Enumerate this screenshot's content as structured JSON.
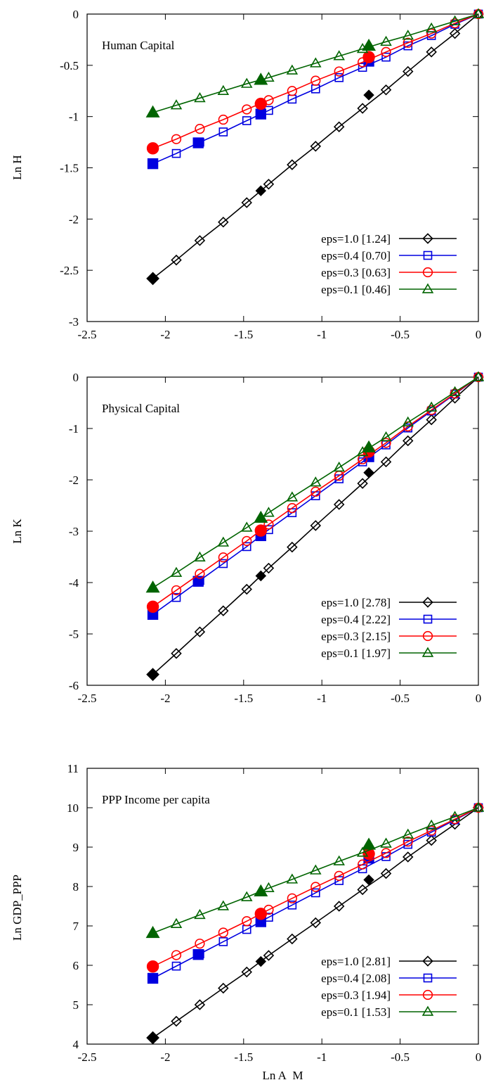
{
  "chart_data": [
    {
      "type": "line",
      "title": "Human Capital",
      "ylabel": "Ln H",
      "xlabel": "",
      "xlim": [
        -2.5,
        0
      ],
      "ylim": [
        -3,
        0
      ],
      "xticks": [
        "-2.5",
        "-2",
        "-1.5",
        "-1",
        "-0.5",
        "0"
      ],
      "yticks": [
        "0",
        "-0.5",
        "-1",
        "-1.5",
        "-2",
        "-2.5",
        "-3"
      ],
      "grid": false,
      "legend_position": "bottom-right",
      "series": [
        {
          "name": "eps=1.0 [1.24]",
          "color": "#000000",
          "marker": "diamond",
          "x": [
            -2.08,
            -1.93,
            -1.78,
            -1.63,
            -1.48,
            -1.34,
            -1.19,
            -1.04,
            -0.89,
            -0.74,
            -0.59,
            -0.45,
            -0.3,
            -0.15,
            0
          ],
          "y": [
            -2.58,
            -2.4,
            -2.21,
            -2.03,
            -1.84,
            -1.66,
            -1.47,
            -1.29,
            -1.1,
            -0.92,
            -0.74,
            -0.56,
            -0.37,
            -0.19,
            0
          ],
          "highlight": {
            "x": -0.7,
            "y": -0.79
          }
        },
        {
          "name": "eps=0.4 [0.70]",
          "color": "#0000e0",
          "marker": "square",
          "x": [
            -2.08,
            -1.93,
            -1.78,
            -1.63,
            -1.48,
            -1.34,
            -1.19,
            -1.04,
            -0.89,
            -0.74,
            -0.59,
            -0.45,
            -0.3,
            -0.15,
            0
          ],
          "y": [
            -1.46,
            -1.36,
            -1.25,
            -1.15,
            -1.04,
            -0.94,
            -0.83,
            -0.73,
            -0.62,
            -0.52,
            -0.42,
            -0.31,
            -0.21,
            -0.1,
            0
          ],
          "highlight": {
            "x": -0.7,
            "y": -0.46
          }
        },
        {
          "name": "eps=0.3 [0.63]",
          "color": "#ff0000",
          "marker": "circle",
          "x": [
            -2.08,
            -1.93,
            -1.78,
            -1.63,
            -1.48,
            -1.34,
            -1.19,
            -1.04,
            -0.89,
            -0.74,
            -0.59,
            -0.45,
            -0.3,
            -0.15,
            0
          ],
          "y": [
            -1.31,
            -1.22,
            -1.12,
            -1.03,
            -0.93,
            -0.84,
            -0.75,
            -0.65,
            -0.56,
            -0.47,
            -0.37,
            -0.28,
            -0.19,
            -0.09,
            0
          ],
          "highlight": {
            "x": -0.7,
            "y": -0.42
          }
        },
        {
          "name": "eps=0.1 [0.46]",
          "color": "#006400",
          "marker": "triangle",
          "x": [
            -2.08,
            -1.93,
            -1.78,
            -1.63,
            -1.48,
            -1.34,
            -1.19,
            -1.04,
            -0.89,
            -0.74,
            -0.59,
            -0.45,
            -0.3,
            -0.15,
            0
          ],
          "y": [
            -0.96,
            -0.89,
            -0.82,
            -0.75,
            -0.68,
            -0.62,
            -0.55,
            -0.48,
            -0.41,
            -0.34,
            -0.27,
            -0.21,
            -0.14,
            -0.07,
            0
          ],
          "highlight": {
            "x": -0.7,
            "y": -0.31
          }
        }
      ]
    },
    {
      "type": "line",
      "title": "Physical Capital",
      "ylabel": "Ln K",
      "xlabel": "",
      "xlim": [
        -2.5,
        0
      ],
      "ylim": [
        -6,
        0
      ],
      "xticks": [
        "-2.5",
        "-2",
        "-1.5",
        "-1",
        "-0.5",
        "0"
      ],
      "yticks": [
        "0",
        "-1",
        "-2",
        "-3",
        "-4",
        "-5",
        "-6"
      ],
      "grid": false,
      "legend_position": "bottom-right",
      "series": [
        {
          "name": "eps=1.0 [2.78]",
          "color": "#000000",
          "marker": "diamond",
          "x": [
            -2.08,
            -1.93,
            -1.78,
            -1.63,
            -1.48,
            -1.34,
            -1.19,
            -1.04,
            -0.89,
            -0.74,
            -0.59,
            -0.45,
            -0.3,
            -0.15,
            0
          ],
          "y": [
            -5.79,
            -5.38,
            -4.96,
            -4.55,
            -4.13,
            -3.72,
            -3.31,
            -2.89,
            -2.48,
            -2.07,
            -1.65,
            -1.24,
            -0.83,
            -0.41,
            0
          ],
          "highlight": {
            "x": -0.7,
            "y": -1.86
          }
        },
        {
          "name": "eps=0.4 [2.22]",
          "color": "#0000e0",
          "marker": "square",
          "x": [
            -2.08,
            -1.93,
            -1.78,
            -1.63,
            -1.48,
            -1.34,
            -1.19,
            -1.04,
            -0.89,
            -0.74,
            -0.59,
            -0.45,
            -0.3,
            -0.15,
            0
          ],
          "y": [
            -4.62,
            -4.29,
            -3.96,
            -3.63,
            -3.3,
            -2.97,
            -2.64,
            -2.31,
            -1.98,
            -1.65,
            -1.32,
            -0.99,
            -0.66,
            -0.33,
            0
          ],
          "highlight": {
            "x": -0.7,
            "y": -1.55
          }
        },
        {
          "name": "eps=0.3 [2.15]",
          "color": "#ff0000",
          "marker": "circle",
          "x": [
            -2.08,
            -1.93,
            -1.78,
            -1.63,
            -1.48,
            -1.34,
            -1.19,
            -1.04,
            -0.89,
            -0.74,
            -0.59,
            -0.45,
            -0.3,
            -0.15,
            0
          ],
          "y": [
            -4.47,
            -4.15,
            -3.83,
            -3.51,
            -3.19,
            -2.87,
            -2.55,
            -2.23,
            -1.92,
            -1.6,
            -1.28,
            -0.96,
            -0.64,
            -0.32,
            0
          ],
          "highlight": {
            "x": -0.7,
            "y": -1.45
          }
        },
        {
          "name": "eps=0.1 [1.97]",
          "color": "#006400",
          "marker": "triangle",
          "x": [
            -2.08,
            -1.93,
            -1.78,
            -1.63,
            -1.48,
            -1.34,
            -1.19,
            -1.04,
            -0.89,
            -0.74,
            -0.59,
            -0.45,
            -0.3,
            -0.15,
            0
          ],
          "y": [
            -4.1,
            -3.81,
            -3.51,
            -3.22,
            -2.93,
            -2.64,
            -2.34,
            -2.05,
            -1.76,
            -1.46,
            -1.17,
            -0.88,
            -0.59,
            -0.29,
            0
          ],
          "highlight": {
            "x": -0.7,
            "y": -1.37
          }
        }
      ]
    },
    {
      "type": "line",
      "title": "PPP Income per capita",
      "ylabel": "Ln GDP_PPP",
      "xlabel": "Ln A_M",
      "xlim": [
        -2.5,
        0
      ],
      "ylim": [
        4,
        11
      ],
      "xticks": [
        "-2.5",
        "-2",
        "-1.5",
        "-1",
        "-0.5",
        "0"
      ],
      "yticks": [
        "11",
        "10",
        "9",
        "8",
        "7",
        "6",
        "5",
        "4"
      ],
      "grid": false,
      "legend_position": "bottom-right",
      "series": [
        {
          "name": "eps=1.0 [2.81]",
          "color": "#000000",
          "marker": "diamond",
          "x": [
            -2.08,
            -1.93,
            -1.78,
            -1.63,
            -1.48,
            -1.34,
            -1.19,
            -1.04,
            -0.89,
            -0.74,
            -0.59,
            -0.45,
            -0.3,
            -0.15,
            0
          ],
          "y": [
            4.16,
            4.58,
            5.0,
            5.42,
            5.83,
            6.25,
            6.67,
            7.08,
            7.5,
            7.92,
            8.33,
            8.75,
            9.17,
            9.58,
            10.0
          ],
          "highlight": {
            "x": -0.7,
            "y": 8.17
          }
        },
        {
          "name": "eps=0.4 [2.08]",
          "color": "#0000e0",
          "marker": "square",
          "x": [
            -2.08,
            -1.93,
            -1.78,
            -1.63,
            -1.48,
            -1.34,
            -1.19,
            -1.04,
            -0.89,
            -0.74,
            -0.59,
            -0.45,
            -0.3,
            -0.15,
            0
          ],
          "y": [
            5.67,
            5.98,
            6.29,
            6.6,
            6.91,
            7.22,
            7.53,
            7.84,
            8.15,
            8.45,
            8.76,
            9.07,
            9.38,
            9.69,
            10.0
          ],
          "highlight": {
            "x": -0.7,
            "y": 8.72
          }
        },
        {
          "name": "eps=0.3 [1.94]",
          "color": "#ff0000",
          "marker": "circle",
          "x": [
            -2.08,
            -1.93,
            -1.78,
            -1.63,
            -1.48,
            -1.34,
            -1.19,
            -1.04,
            -0.89,
            -0.74,
            -0.59,
            -0.45,
            -0.3,
            -0.15,
            0
          ],
          "y": [
            5.97,
            6.26,
            6.55,
            6.83,
            7.12,
            7.41,
            7.7,
            7.99,
            8.27,
            8.56,
            8.85,
            9.14,
            9.42,
            9.71,
            10.0
          ],
          "highlight": {
            "x": -0.7,
            "y": 8.83
          }
        },
        {
          "name": "eps=0.1 [1.53]",
          "color": "#006400",
          "marker": "triangle",
          "x": [
            -2.08,
            -1.93,
            -1.78,
            -1.63,
            -1.48,
            -1.34,
            -1.19,
            -1.04,
            -0.89,
            -0.74,
            -0.59,
            -0.45,
            -0.3,
            -0.15,
            0
          ],
          "y": [
            6.82,
            7.05,
            7.28,
            7.5,
            7.73,
            7.96,
            8.18,
            8.41,
            8.64,
            8.86,
            9.09,
            9.32,
            9.55,
            9.77,
            10.0
          ],
          "highlight": {
            "x": -0.7,
            "y": 9.06
          }
        }
      ]
    }
  ]
}
